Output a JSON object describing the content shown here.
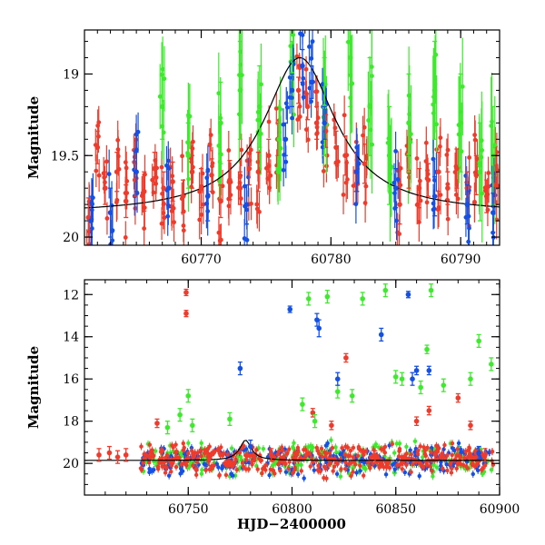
{
  "chart_data": [
    {
      "type": "scatter",
      "panel": "top",
      "title": "",
      "xlabel": "",
      "ylabel": "Magnitude",
      "xlim": [
        60761,
        60793
      ],
      "ylim": [
        20.05,
        18.73
      ],
      "y_inverted": true,
      "xticks": [
        60770,
        60780,
        60790
      ],
      "yticks": [
        19,
        19.5,
        20
      ],
      "ytick_labels": [
        "19",
        "19.5",
        "20"
      ],
      "legend": "none",
      "grid": false,
      "series_colors": {
        "red": "#ee3b2b",
        "green": "#3dea2c",
        "blue": "#1450e6"
      },
      "model_curve": {
        "color": "#000000",
        "baseline": 19.86,
        "peak": 18.9,
        "t0": 60777.6,
        "width": 3.4
      },
      "series": [
        {
          "color": "red",
          "values": [
            [
              60761.3,
              19.88,
              0.12
            ],
            [
              60762.0,
              19.45,
              0.1
            ],
            [
              60762.6,
              19.7,
              0.1
            ],
            [
              60763.5,
              19.6,
              0.12
            ],
            [
              60764.2,
              19.78,
              0.1
            ],
            [
              60764.9,
              19.65,
              0.1
            ],
            [
              60765.6,
              19.72,
              0.12
            ],
            [
              60766.4,
              19.58,
              0.1
            ],
            [
              60767.1,
              19.7,
              0.1
            ],
            [
              60767.8,
              19.66,
              0.12
            ],
            [
              60768.6,
              19.75,
              0.1
            ],
            [
              60769.3,
              19.6,
              0.1
            ],
            [
              60770.0,
              19.7,
              0.12
            ],
            [
              60770.8,
              19.62,
              0.1
            ],
            [
              60771.5,
              19.78,
              0.1
            ],
            [
              60772.2,
              19.65,
              0.12
            ],
            [
              60773.0,
              19.7,
              0.1
            ],
            [
              60773.7,
              19.58,
              0.1
            ],
            [
              60774.4,
              19.6,
              0.12
            ],
            [
              60775.2,
              19.5,
              0.1
            ],
            [
              60775.9,
              19.4,
              0.1
            ],
            [
              60777.5,
              19.1,
              0.08
            ],
            [
              60778.2,
              19.2,
              0.08
            ],
            [
              60778.9,
              19.3,
              0.1
            ],
            [
              60779.6,
              19.35,
              0.1
            ],
            [
              60780.4,
              19.45,
              0.1
            ],
            [
              60781.1,
              19.5,
              0.12
            ],
            [
              60781.9,
              19.6,
              0.12
            ],
            [
              60782.6,
              19.55,
              0.12
            ],
            [
              60785.3,
              19.8,
              0.12
            ],
            [
              60786.0,
              19.6,
              0.1
            ],
            [
              60786.8,
              19.7,
              0.12
            ],
            [
              60787.5,
              19.65,
              0.1
            ],
            [
              60788.3,
              19.6,
              0.12
            ],
            [
              60789.0,
              19.7,
              0.1
            ],
            [
              60789.7,
              19.58,
              0.12
            ],
            [
              60790.5,
              19.7,
              0.1
            ],
            [
              60791.2,
              19.62,
              0.12
            ],
            [
              60792.0,
              19.75,
              0.1
            ],
            [
              60792.7,
              19.68,
              0.12
            ]
          ]
        },
        {
          "color": "green",
          "values": [
            [
              60767.0,
              19.2,
              0.2
            ],
            [
              60769.0,
              19.5,
              0.2
            ],
            [
              60771.5,
              19.3,
              0.25
            ],
            [
              60773.0,
              19.1,
              0.3
            ],
            [
              60774.5,
              19.2,
              0.25
            ],
            [
              60776.0,
              19.4,
              0.2
            ],
            [
              60777.0,
              19.0,
              0.2
            ],
            [
              60779.5,
              19.2,
              0.3
            ],
            [
              60781.5,
              18.9,
              0.3
            ],
            [
              60783.0,
              19.2,
              0.3
            ],
            [
              60784.5,
              19.5,
              0.3
            ],
            [
              60786.0,
              19.3,
              0.3
            ],
            [
              60788.0,
              19.1,
              0.3
            ],
            [
              60790.0,
              19.3,
              0.3
            ],
            [
              60791.5,
              19.6,
              0.3
            ],
            [
              60792.5,
              19.5,
              0.3
            ]
          ]
        },
        {
          "color": "blue",
          "values": [
            [
              60761.5,
              19.9,
              0.15
            ],
            [
              60763.0,
              19.85,
              0.15
            ],
            [
              60765.0,
              19.6,
              0.12
            ],
            [
              60767.5,
              19.7,
              0.12
            ],
            [
              60770.5,
              19.75,
              0.15
            ],
            [
              60773.5,
              19.8,
              0.12
            ],
            [
              60776.5,
              19.4,
              0.1
            ],
            [
              60777.0,
              19.1,
              0.1
            ],
            [
              60777.8,
              18.95,
              0.1
            ],
            [
              60778.5,
              19.05,
              0.1
            ],
            [
              60779.5,
              19.3,
              0.1
            ],
            [
              60782.0,
              19.6,
              0.12
            ],
            [
              60785.0,
              19.7,
              0.12
            ],
            [
              60788.0,
              19.75,
              0.12
            ],
            [
              60790.5,
              19.8,
              0.12
            ],
            [
              60792.5,
              19.85,
              0.12
            ]
          ]
        }
      ]
    },
    {
      "type": "scatter",
      "panel": "bottom",
      "title": "",
      "xlabel": "HJD−2400000",
      "ylabel": "Magnitude",
      "xlim": [
        60700,
        60900
      ],
      "ylim": [
        21.5,
        11.3
      ],
      "y_inverted": true,
      "xticks": [
        60750,
        60800,
        60850,
        60900
      ],
      "yticks": [
        12,
        14,
        16,
        18,
        20
      ],
      "ytick_labels": [
        "12",
        "14",
        "16",
        "18",
        "20"
      ],
      "legend": "none",
      "grid": false,
      "series_colors": {
        "red": "#ee3b2b",
        "green": "#3dea2c",
        "blue": "#1450e6"
      },
      "model_curve": {
        "color": "#000000",
        "baseline": 19.86,
        "peak": 18.9,
        "t0": 60777.6,
        "width": 3.4
      },
      "series": [
        {
          "color": "red",
          "values": [
            [
              60707,
              19.6,
              0.3
            ],
            [
              60712,
              19.5,
              0.3
            ],
            [
              60716,
              19.7,
              0.3
            ],
            [
              60720,
              19.6,
              0.3
            ],
            [
              60735,
              18.1,
              0.2
            ],
            [
              60749,
              11.9,
              0.15
            ],
            [
              60749,
              12.9,
              0.15
            ],
            [
              60760,
              19.8,
              0.3
            ],
            [
              60790,
              19.6,
              0.3
            ],
            [
              60810,
              17.6,
              0.2
            ],
            [
              60819,
              18.2,
              0.2
            ],
            [
              60826,
              15.0,
              0.2
            ],
            [
              60840,
              19.7,
              0.3
            ],
            [
              60860,
              18.0,
              0.2
            ],
            [
              60866,
              17.5,
              0.2
            ],
            [
              60880,
              16.9,
              0.2
            ],
            [
              60886,
              18.2,
              0.2
            ],
            [
              60893,
              19.6,
              0.3
            ]
          ]
        },
        {
          "color": "green",
          "values": [
            [
              60740,
              18.3,
              0.3
            ],
            [
              60746,
              17.7,
              0.3
            ],
            [
              60750,
              16.8,
              0.3
            ],
            [
              60752,
              18.2,
              0.3
            ],
            [
              60770,
              17.9,
              0.3
            ],
            [
              60805,
              17.2,
              0.3
            ],
            [
              60808,
              12.2,
              0.3
            ],
            [
              60811,
              18.0,
              0.3
            ],
            [
              60817,
              12.1,
              0.3
            ],
            [
              60822,
              16.6,
              0.3
            ],
            [
              60829,
              16.8,
              0.3
            ],
            [
              60834,
              12.2,
              0.3
            ],
            [
              60845,
              11.8,
              0.3
            ],
            [
              60850,
              15.9,
              0.3
            ],
            [
              60853,
              16.0,
              0.3
            ],
            [
              60862,
              16.4,
              0.3
            ],
            [
              60865,
              14.6,
              0.2
            ],
            [
              60867,
              11.8,
              0.3
            ],
            [
              60873,
              16.3,
              0.3
            ],
            [
              60886,
              16.0,
              0.3
            ],
            [
              60890,
              14.2,
              0.3
            ],
            [
              60896,
              15.3,
              0.3
            ]
          ]
        },
        {
          "color": "blue",
          "values": [
            [
              60775,
              15.5,
              0.3
            ],
            [
              60780,
              19.2,
              0.3
            ],
            [
              60799,
              12.7,
              0.15
            ],
            [
              60812,
              13.2,
              0.3
            ],
            [
              60813,
              13.6,
              0.4
            ],
            [
              60822,
              16.0,
              0.3
            ],
            [
              60843,
              13.9,
              0.3
            ],
            [
              60856,
              12.0,
              0.15
            ],
            [
              60858,
              16.0,
              0.3
            ],
            [
              60860,
              15.6,
              0.2
            ],
            [
              60866,
              15.6,
              0.2
            ],
            [
              60890,
              19.5,
              0.3
            ]
          ]
        }
      ],
      "dense_band": {
        "x_range": [
          60727,
          60897
        ],
        "y_center": 19.8,
        "y_spread": 0.7
      }
    }
  ]
}
